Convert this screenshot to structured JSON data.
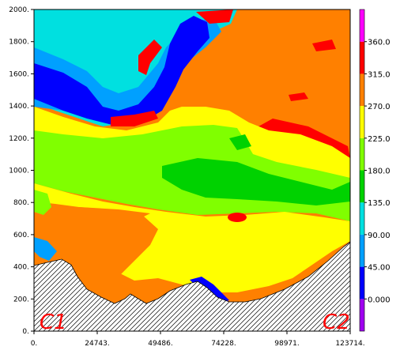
{
  "chart_data": {
    "type": "heatmap",
    "title": "",
    "xlabel": "",
    "ylabel": "",
    "xlim": [
      0,
      123714
    ],
    "ylim": [
      0,
      2000
    ],
    "x_ticks": [
      "0.",
      "24743.",
      "49486.",
      "74228.",
      "98971.",
      "123714."
    ],
    "y_ticks": [
      "0.",
      "200.",
      "400.",
      "600.",
      "800.",
      "1000.",
      "1200.",
      "1400.",
      "1600.",
      "1800.",
      "2000."
    ],
    "colorbar": {
      "labels": [
        "0.000",
        "45.00",
        "90.00",
        "135.0",
        "180.0",
        "225.0",
        "270.0",
        "315.0",
        "360.0"
      ],
      "colors": [
        "#a000f0",
        "#0000ff",
        "#00a0ff",
        "#00e0e0",
        "#00d200",
        "#80ff00",
        "#ffff00",
        "#ff8000",
        "#ff0000",
        "#ff00ff"
      ]
    },
    "colors": {
      "cyan": "#00e0e0",
      "light_blue": "#00a0ff",
      "blue": "#0000ff",
      "green": "#00d200",
      "lime": "#80ff00",
      "yellow": "#ffff00",
      "orange": "#ff8000",
      "red": "#ff0000"
    },
    "section_labels": {
      "left": "C1",
      "right": "C2"
    }
  }
}
